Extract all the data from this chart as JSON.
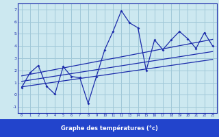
{
  "background_color": "#cce8f0",
  "grid_color": "#a0c8d8",
  "line_color": "#1a2aaa",
  "xlabel": "Graphe des températures (°c)",
  "xlabel_bgcolor": "#2244cc",
  "ylim": [
    -1.5,
    7.5
  ],
  "xlim": [
    -0.5,
    23.5
  ],
  "yticks": [
    -1,
    0,
    1,
    2,
    3,
    4,
    5,
    6,
    7
  ],
  "xticks": [
    0,
    1,
    2,
    3,
    4,
    5,
    6,
    7,
    8,
    9,
    10,
    11,
    12,
    13,
    14,
    15,
    16,
    17,
    18,
    19,
    20,
    21,
    22,
    23
  ],
  "series1_x": [
    0,
    1,
    2,
    3,
    4,
    5,
    6,
    7,
    8,
    9,
    10,
    11,
    12,
    13,
    14,
    15,
    16,
    17,
    18,
    19,
    20,
    21,
    22,
    23
  ],
  "series1_y": [
    0.6,
    1.8,
    2.4,
    0.7,
    0.05,
    2.3,
    1.5,
    1.4,
    -0.7,
    1.5,
    3.7,
    5.2,
    6.9,
    5.9,
    5.5,
    2.0,
    4.5,
    3.7,
    4.5,
    5.2,
    4.6,
    3.8,
    5.1,
    4.0
  ],
  "trend1_x": [
    0,
    23
  ],
  "trend1_y": [
    0.65,
    2.9
  ],
  "trend2_x": [
    0,
    23
  ],
  "trend2_y": [
    1.1,
    3.55
  ],
  "trend3_x": [
    0,
    23
  ],
  "trend3_y": [
    1.55,
    4.55
  ]
}
